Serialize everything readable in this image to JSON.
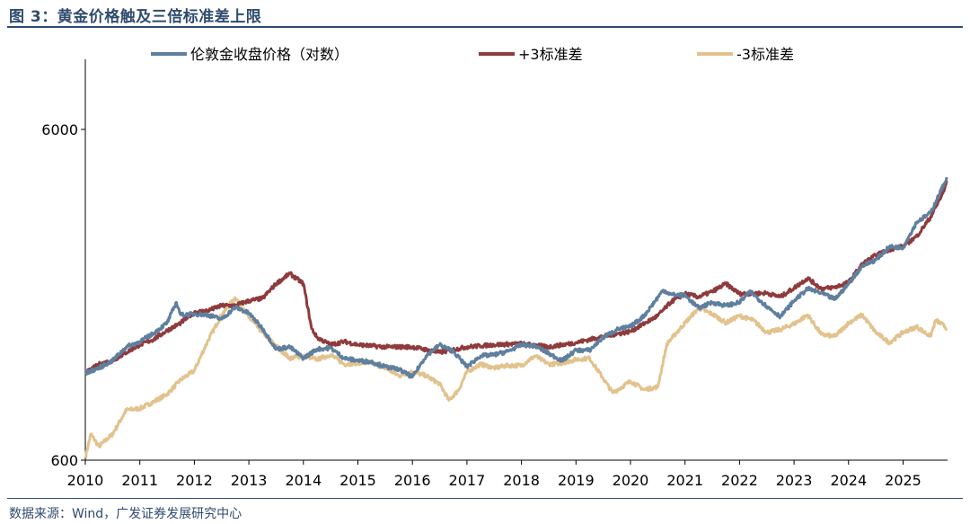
{
  "figure": {
    "title": "图 3：黄金价格触及三倍标准差上限",
    "source": "数据来源：Wind，广发证券发展研究中心"
  },
  "colors": {
    "gold_price": "#5f7f9f",
    "upper_band": "#8e3b3d",
    "lower_band": "#e2c28d",
    "title": "#2f4b6e"
  },
  "chart_data": {
    "type": "line",
    "title": "",
    "xlabel": "",
    "ylabel": "",
    "y_scale": "log",
    "ylim": [
      600,
      9500
    ],
    "xlim": [
      2010,
      2025.85
    ],
    "y_ticks": [
      600,
      6000
    ],
    "x_ticks": [
      2010,
      2011,
      2012,
      2013,
      2014,
      2015,
      2016,
      2017,
      2018,
      2019,
      2020,
      2021,
      2022,
      2023,
      2024,
      2025
    ],
    "grid": false,
    "legend_position": "top",
    "series": [
      {
        "name": "伦敦金收盘价格（对数）",
        "color": "#5f7f9f",
        "x": [
          2010.0,
          2010.25,
          2010.5,
          2010.75,
          2011.0,
          2011.25,
          2011.5,
          2011.67,
          2011.75,
          2012.0,
          2012.25,
          2012.5,
          2012.75,
          2013.0,
          2013.25,
          2013.5,
          2013.75,
          2014.0,
          2014.25,
          2014.5,
          2014.75,
          2015.0,
          2015.25,
          2015.5,
          2015.75,
          2016.0,
          2016.25,
          2016.5,
          2016.75,
          2017.0,
          2017.25,
          2017.5,
          2017.75,
          2018.0,
          2018.25,
          2018.5,
          2018.75,
          2019.0,
          2019.25,
          2019.5,
          2019.75,
          2020.0,
          2020.25,
          2020.6,
          2020.75,
          2021.0,
          2021.25,
          2021.5,
          2021.75,
          2022.0,
          2022.2,
          2022.5,
          2022.75,
          2023.0,
          2023.25,
          2023.5,
          2023.75,
          2024.0,
          2024.25,
          2024.5,
          2024.75,
          2025.0,
          2025.25,
          2025.5,
          2025.75,
          2025.8
        ],
        "y": [
          1100,
          1140,
          1200,
          1320,
          1370,
          1450,
          1560,
          1800,
          1650,
          1660,
          1650,
          1600,
          1740,
          1670,
          1500,
          1300,
          1320,
          1220,
          1300,
          1310,
          1220,
          1200,
          1190,
          1150,
          1130,
          1070,
          1240,
          1340,
          1280,
          1150,
          1240,
          1250,
          1280,
          1340,
          1330,
          1260,
          1200,
          1290,
          1290,
          1410,
          1490,
          1520,
          1640,
          1960,
          1900,
          1890,
          1730,
          1800,
          1760,
          1800,
          1940,
          1750,
          1630,
          1820,
          1980,
          1920,
          1840,
          2050,
          2320,
          2420,
          2650,
          2640,
          3150,
          3350,
          4100,
          4300
        ]
      },
      {
        "name": "+3标准差",
        "color": "#8e3b3d",
        "x": [
          2010.0,
          2010.25,
          2010.5,
          2010.75,
          2011.0,
          2011.25,
          2011.5,
          2011.75,
          2012.0,
          2012.25,
          2012.5,
          2012.75,
          2013.0,
          2013.25,
          2013.5,
          2013.75,
          2014.0,
          2014.15,
          2014.25,
          2014.5,
          2014.75,
          2015.0,
          2015.5,
          2016.0,
          2016.5,
          2017.0,
          2017.5,
          2018.0,
          2018.5,
          2019.0,
          2019.5,
          2020.0,
          2020.5,
          2020.75,
          2021.0,
          2021.25,
          2021.5,
          2021.75,
          2022.0,
          2022.5,
          2022.75,
          2023.0,
          2023.25,
          2023.5,
          2023.75,
          2024.0,
          2024.25,
          2024.5,
          2024.75,
          2025.0,
          2025.25,
          2025.5,
          2025.75,
          2025.8
        ],
        "y": [
          1100,
          1170,
          1200,
          1270,
          1340,
          1390,
          1480,
          1560,
          1680,
          1700,
          1760,
          1760,
          1820,
          1850,
          2050,
          2200,
          2050,
          1500,
          1410,
          1340,
          1370,
          1340,
          1320,
          1320,
          1270,
          1320,
          1340,
          1350,
          1320,
          1360,
          1420,
          1470,
          1640,
          1810,
          1910,
          1870,
          1940,
          2050,
          1910,
          1920,
          1870,
          1990,
          2130,
          1980,
          2000,
          2070,
          2350,
          2500,
          2600,
          2660,
          2850,
          3250,
          3900,
          4200
        ]
      },
      {
        "name": "-3标准差",
        "color": "#e2c28d",
        "x": [
          2010.0,
          2010.1,
          2010.25,
          2010.5,
          2010.75,
          2011.0,
          2011.25,
          2011.5,
          2011.75,
          2012.0,
          2012.25,
          2012.5,
          2012.75,
          2013.0,
          2013.25,
          2013.5,
          2013.75,
          2014.0,
          2014.25,
          2014.5,
          2014.75,
          2015.0,
          2015.25,
          2015.5,
          2015.75,
          2016.0,
          2016.25,
          2016.5,
          2016.67,
          2016.85,
          2017.0,
          2017.25,
          2017.5,
          2017.75,
          2018.0,
          2018.25,
          2018.5,
          2018.75,
          2019.0,
          2019.25,
          2019.5,
          2019.67,
          2019.85,
          2020.0,
          2020.25,
          2020.5,
          2020.67,
          2020.85,
          2021.0,
          2021.25,
          2021.5,
          2021.75,
          2022.0,
          2022.25,
          2022.5,
          2022.75,
          2023.0,
          2023.25,
          2023.5,
          2023.75,
          2024.0,
          2024.25,
          2024.5,
          2024.75,
          2025.0,
          2025.25,
          2025.5,
          2025.6,
          2025.75,
          2025.8
        ],
        "y": [
          610,
          720,
          660,
          720,
          850,
          860,
          900,
          950,
          1050,
          1120,
          1380,
          1650,
          1860,
          1620,
          1460,
          1330,
          1220,
          1240,
          1210,
          1250,
          1170,
          1180,
          1180,
          1140,
          1080,
          1110,
          1080,
          1020,
          910,
          980,
          1110,
          1170,
          1140,
          1160,
          1160,
          1240,
          1170,
          1180,
          1210,
          1220,
          1060,
          960,
          1000,
          1040,
          980,
          1000,
          1350,
          1460,
          1560,
          1730,
          1660,
          1560,
          1640,
          1590,
          1460,
          1490,
          1550,
          1650,
          1440,
          1420,
          1560,
          1650,
          1460,
          1360,
          1460,
          1520,
          1420,
          1590,
          1530,
          1500
        ]
      }
    ]
  }
}
